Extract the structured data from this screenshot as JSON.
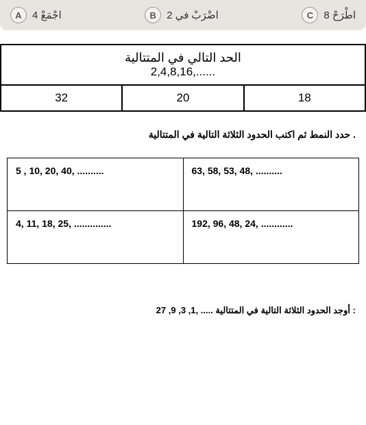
{
  "options": {
    "a": {
      "letter": "A",
      "text": "اجْمَعْ 4"
    },
    "b": {
      "letter": "B",
      "text": "اضْرَبْ في 2"
    },
    "c": {
      "letter": "C",
      "text": "اطْرَحْ 8"
    }
  },
  "sequence_table": {
    "header_line1": "الحد التالي في المتتالية",
    "header_line2": "2,4,8,16,......",
    "answers": [
      "32",
      "20",
      "18"
    ]
  },
  "instruction1": "حدد النمط ثم اكتب الحدود الثلاثة التالية في المتتالية .",
  "patterns": {
    "row1": {
      "left": "5 , 10, 20, 40, ..........",
      "right": "63, 58, 53, 48, .........."
    },
    "row2": {
      "left": "4, 11, 18, 25, ..............",
      "right": "192, 96, 48, 24, ............"
    }
  },
  "bottom_question": "أوجد الحدود الثلاثة التالية في المتتالية  ..... ,1, 3, 9, 27 :"
}
